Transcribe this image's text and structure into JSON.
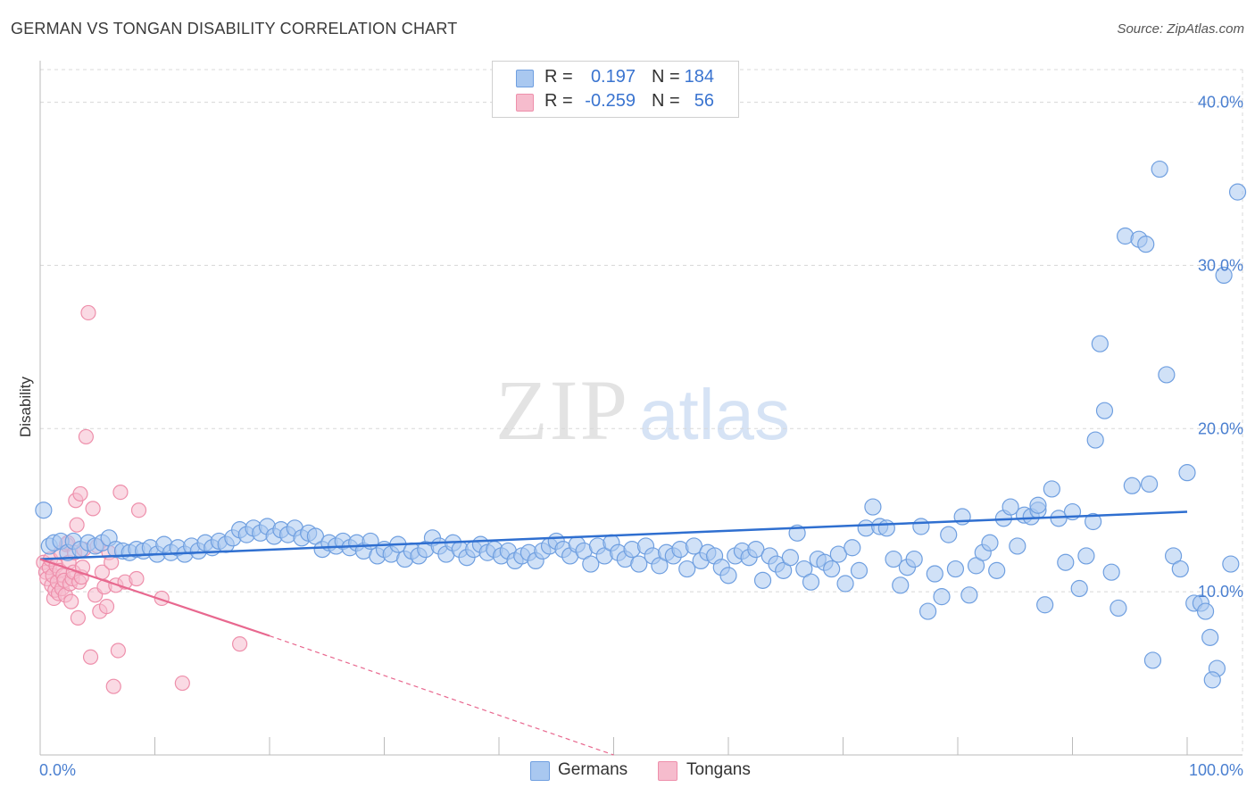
{
  "header": {
    "title": "GERMAN VS TONGAN DISABILITY CORRELATION CHART",
    "source": "Source: ZipAtlas.com"
  },
  "legend": {
    "rows": [
      {
        "r_label": "R =",
        "r_value": "0.197",
        "n_label": "N =",
        "n_value": "184"
      },
      {
        "r_label": "R =",
        "r_value": "-0.259",
        "n_label": "N =",
        "n_value": "56"
      }
    ]
  },
  "bottom_legend": {
    "germans": "Germans",
    "tongans": "Tongans"
  },
  "watermark": {
    "zip": "ZIP",
    "atlas": "atlas"
  },
  "colors": {
    "german_fill": "#a9c8f0",
    "german_stroke": "#6f9fe0",
    "german_line": "#2f6fd0",
    "tongan_fill": "#f6bccd",
    "tongan_stroke": "#ee8fab",
    "tongan_line": "#e8688f",
    "axis_text": "#4a7fd0",
    "grid": "#d8d8d8"
  },
  "chart_data": {
    "type": "scatter",
    "title": "GERMAN VS TONGAN DISABILITY CORRELATION CHART",
    "ylabel": "Disability",
    "xlim": [
      0,
      100
    ],
    "ylim": [
      0,
      42
    ],
    "x_tick_labels": [
      "0.0%",
      "100.0%"
    ],
    "y_ticks": [
      10,
      20,
      30,
      40
    ],
    "y_tick_labels": [
      "10.0%",
      "20.0%",
      "30.0%",
      "40.0%"
    ],
    "grid": true,
    "legend_position": "top-center",
    "series": [
      {
        "name": "Germans",
        "r": 0.197,
        "n": 184,
        "trend": {
          "x": [
            0,
            100
          ],
          "y": [
            12.0,
            14.9
          ]
        },
        "points": [
          [
            0.3,
            15.0
          ],
          [
            0.8,
            12.8
          ],
          [
            1.2,
            13.0
          ],
          [
            1.8,
            13.1
          ],
          [
            2.4,
            12.4
          ],
          [
            2.9,
            13.1
          ],
          [
            3.5,
            12.6
          ],
          [
            4.2,
            13.0
          ],
          [
            4.8,
            12.8
          ],
          [
            5.4,
            13.0
          ],
          [
            6.0,
            13.3
          ],
          [
            6.6,
            12.6
          ],
          [
            7.2,
            12.5
          ],
          [
            7.8,
            12.4
          ],
          [
            8.4,
            12.6
          ],
          [
            9.0,
            12.5
          ],
          [
            9.6,
            12.7
          ],
          [
            10.2,
            12.3
          ],
          [
            10.8,
            12.9
          ],
          [
            11.4,
            12.4
          ],
          [
            12.0,
            12.7
          ],
          [
            12.6,
            12.3
          ],
          [
            13.2,
            12.8
          ],
          [
            13.8,
            12.5
          ],
          [
            14.4,
            13.0
          ],
          [
            15.0,
            12.7
          ],
          [
            15.6,
            13.1
          ],
          [
            16.2,
            12.9
          ],
          [
            16.8,
            13.3
          ],
          [
            17.4,
            13.8
          ],
          [
            18.0,
            13.5
          ],
          [
            18.6,
            13.9
          ],
          [
            19.2,
            13.6
          ],
          [
            19.8,
            14.0
          ],
          [
            20.4,
            13.4
          ],
          [
            21.0,
            13.8
          ],
          [
            21.6,
            13.5
          ],
          [
            22.2,
            13.9
          ],
          [
            22.8,
            13.3
          ],
          [
            23.4,
            13.6
          ],
          [
            24.0,
            13.4
          ],
          [
            24.6,
            12.6
          ],
          [
            25.2,
            13.0
          ],
          [
            25.8,
            12.8
          ],
          [
            26.4,
            13.1
          ],
          [
            27.0,
            12.7
          ],
          [
            27.6,
            13.0
          ],
          [
            28.2,
            12.5
          ],
          [
            28.8,
            13.1
          ],
          [
            29.4,
            12.2
          ],
          [
            30.0,
            12.6
          ],
          [
            30.6,
            12.3
          ],
          [
            31.2,
            12.9
          ],
          [
            31.8,
            12.0
          ],
          [
            32.4,
            12.5
          ],
          [
            33.0,
            12.2
          ],
          [
            33.6,
            12.6
          ],
          [
            34.2,
            13.3
          ],
          [
            34.8,
            12.8
          ],
          [
            35.4,
            12.3
          ],
          [
            36.0,
            13.0
          ],
          [
            36.6,
            12.6
          ],
          [
            37.2,
            12.1
          ],
          [
            37.8,
            12.6
          ],
          [
            38.4,
            12.9
          ],
          [
            39.0,
            12.4
          ],
          [
            39.6,
            12.6
          ],
          [
            40.2,
            12.2
          ],
          [
            40.8,
            12.5
          ],
          [
            41.4,
            11.9
          ],
          [
            42.0,
            12.2
          ],
          [
            42.6,
            12.4
          ],
          [
            43.2,
            11.9
          ],
          [
            43.8,
            12.5
          ],
          [
            44.4,
            12.8
          ],
          [
            45.0,
            13.1
          ],
          [
            45.6,
            12.6
          ],
          [
            46.2,
            12.2
          ],
          [
            46.8,
            12.9
          ],
          [
            47.4,
            12.5
          ],
          [
            48.0,
            11.7
          ],
          [
            48.6,
            12.8
          ],
          [
            49.2,
            12.2
          ],
          [
            49.8,
            13.0
          ],
          [
            50.4,
            12.4
          ],
          [
            51.0,
            12.0
          ],
          [
            51.6,
            12.6
          ],
          [
            52.2,
            11.7
          ],
          [
            52.8,
            12.8
          ],
          [
            53.4,
            12.2
          ],
          [
            54.0,
            11.6
          ],
          [
            54.6,
            12.4
          ],
          [
            55.2,
            12.2
          ],
          [
            55.8,
            12.6
          ],
          [
            56.4,
            11.4
          ],
          [
            57.0,
            12.8
          ],
          [
            57.6,
            11.9
          ],
          [
            58.2,
            12.4
          ],
          [
            58.8,
            12.2
          ],
          [
            59.4,
            11.5
          ],
          [
            60.0,
            11.0
          ],
          [
            60.6,
            12.2
          ],
          [
            61.2,
            12.5
          ],
          [
            61.8,
            12.1
          ],
          [
            62.4,
            12.6
          ],
          [
            63.0,
            10.7
          ],
          [
            63.6,
            12.2
          ],
          [
            64.2,
            11.7
          ],
          [
            64.8,
            11.3
          ],
          [
            65.4,
            12.1
          ],
          [
            66.0,
            13.6
          ],
          [
            66.6,
            11.4
          ],
          [
            67.2,
            10.6
          ],
          [
            67.8,
            12.0
          ],
          [
            68.4,
            11.8
          ],
          [
            69.0,
            11.4
          ],
          [
            69.6,
            12.3
          ],
          [
            70.2,
            10.5
          ],
          [
            70.8,
            12.7
          ],
          [
            71.4,
            11.3
          ],
          [
            72.0,
            13.9
          ],
          [
            72.6,
            15.2
          ],
          [
            73.2,
            14.0
          ],
          [
            73.8,
            13.9
          ],
          [
            74.4,
            12.0
          ],
          [
            75.0,
            10.4
          ],
          [
            75.6,
            11.5
          ],
          [
            76.2,
            12.0
          ],
          [
            76.8,
            14.0
          ],
          [
            77.4,
            8.8
          ],
          [
            78.0,
            11.1
          ],
          [
            78.6,
            9.7
          ],
          [
            79.2,
            13.5
          ],
          [
            79.8,
            11.4
          ],
          [
            80.4,
            14.6
          ],
          [
            81.0,
            9.8
          ],
          [
            81.6,
            11.6
          ],
          [
            82.2,
            12.4
          ],
          [
            82.8,
            13.0
          ],
          [
            83.4,
            11.3
          ],
          [
            84.0,
            14.5
          ],
          [
            84.6,
            15.2
          ],
          [
            85.2,
            12.8
          ],
          [
            85.8,
            14.7
          ],
          [
            86.4,
            14.6
          ],
          [
            87.0,
            15.0
          ],
          [
            87.6,
            9.2
          ],
          [
            88.2,
            16.3
          ],
          [
            88.8,
            14.5
          ],
          [
            89.4,
            11.8
          ],
          [
            90.0,
            14.9
          ],
          [
            90.6,
            10.2
          ],
          [
            91.2,
            12.2
          ],
          [
            91.8,
            14.3
          ],
          [
            92.4,
            25.2
          ],
          [
            92.8,
            21.1
          ],
          [
            93.4,
            11.2
          ],
          [
            94.0,
            9.0
          ],
          [
            94.6,
            31.8
          ],
          [
            95.2,
            16.5
          ],
          [
            95.8,
            31.6
          ],
          [
            96.4,
            31.3
          ],
          [
            97.0,
            5.8
          ],
          [
            97.6,
            35.9
          ],
          [
            98.2,
            23.3
          ],
          [
            98.8,
            12.2
          ],
          [
            99.4,
            11.4
          ],
          [
            100.0,
            17.3
          ],
          [
            100.6,
            9.3
          ],
          [
            101.2,
            9.3
          ],
          [
            101.6,
            8.8
          ],
          [
            102.0,
            7.2
          ],
          [
            102.6,
            5.3
          ],
          [
            103.2,
            29.4
          ],
          [
            103.8,
            11.7
          ],
          [
            104.4,
            34.5
          ],
          [
            102.2,
            4.6
          ],
          [
            96.7,
            16.6
          ],
          [
            92.0,
            19.3
          ],
          [
            87.0,
            15.3
          ]
        ]
      },
      {
        "name": "Tongans",
        "r": -0.259,
        "n": 56,
        "trend": {
          "x": [
            0,
            20
          ],
          "y": [
            12.0,
            7.3
          ]
        },
        "trend_dashed": {
          "x": [
            20,
            50
          ],
          "y": [
            7.3,
            0.0
          ]
        },
        "points": [
          [
            0.3,
            11.8
          ],
          [
            0.5,
            11.2
          ],
          [
            0.6,
            10.8
          ],
          [
            0.8,
            11.5
          ],
          [
            0.9,
            12.0
          ],
          [
            1.0,
            10.4
          ],
          [
            1.1,
            11.0
          ],
          [
            1.2,
            9.6
          ],
          [
            1.3,
            10.1
          ],
          [
            1.4,
            11.6
          ],
          [
            1.5,
            10.6
          ],
          [
            1.6,
            9.9
          ],
          [
            1.7,
            11.3
          ],
          [
            1.8,
            12.4
          ],
          [
            1.9,
            10.2
          ],
          [
            2.0,
            11.0
          ],
          [
            2.1,
            10.7
          ],
          [
            2.2,
            9.8
          ],
          [
            2.3,
            12.9
          ],
          [
            2.4,
            13.0
          ],
          [
            2.5,
            11.8
          ],
          [
            2.6,
            10.5
          ],
          [
            2.7,
            9.4
          ],
          [
            2.8,
            10.8
          ],
          [
            2.9,
            11.2
          ],
          [
            3.0,
            12.4
          ],
          [
            3.1,
            15.6
          ],
          [
            3.2,
            14.1
          ],
          [
            3.3,
            8.4
          ],
          [
            3.4,
            10.6
          ],
          [
            3.5,
            16.0
          ],
          [
            3.6,
            10.9
          ],
          [
            3.7,
            11.5
          ],
          [
            3.8,
            12.6
          ],
          [
            4.0,
            19.5
          ],
          [
            4.2,
            27.1
          ],
          [
            4.4,
            6.0
          ],
          [
            4.6,
            15.1
          ],
          [
            4.8,
            9.8
          ],
          [
            5.0,
            12.8
          ],
          [
            5.2,
            8.8
          ],
          [
            5.4,
            11.2
          ],
          [
            5.6,
            10.3
          ],
          [
            5.8,
            9.1
          ],
          [
            6.0,
            12.4
          ],
          [
            6.2,
            11.8
          ],
          [
            6.4,
            4.2
          ],
          [
            6.6,
            10.4
          ],
          [
            6.8,
            6.4
          ],
          [
            7.0,
            16.1
          ],
          [
            7.4,
            10.6
          ],
          [
            8.4,
            10.8
          ],
          [
            8.6,
            15.0
          ],
          [
            10.6,
            9.6
          ],
          [
            12.4,
            4.4
          ],
          [
            17.4,
            6.8
          ]
        ]
      }
    ]
  }
}
